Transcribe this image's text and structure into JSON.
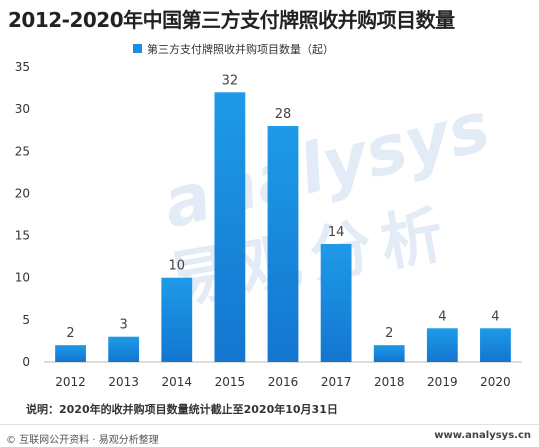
{
  "chart_data": {
    "type": "bar",
    "title": "2012-2020年中国第三方支付牌照收并购项目数量",
    "categories": [
      "2012",
      "2013",
      "2014",
      "2015",
      "2016",
      "2017",
      "2018",
      "2019",
      "2020"
    ],
    "series": [
      {
        "name": "第三方支付牌照收并购项目数量（起）",
        "values": [
          2,
          3,
          10,
          32,
          28,
          14,
          2,
          4,
          4
        ],
        "color": "#1a8fe0"
      }
    ],
    "xlabel": "",
    "ylabel": "",
    "ylim": [
      0,
      35
    ],
    "yticks": [
      "0",
      "5",
      "10",
      "15",
      "20",
      "25",
      "30",
      "35"
    ],
    "grid": false,
    "legend": "top-center"
  },
  "note": "说明：2020年的收并购项目数量统计截止至2020年10月31日",
  "footer": {
    "source": "© 互联网公开资料 · 易观分析整理",
    "url": "www.analysys.cn"
  },
  "watermark": {
    "en": "analysys",
    "cn": "易观分析"
  }
}
